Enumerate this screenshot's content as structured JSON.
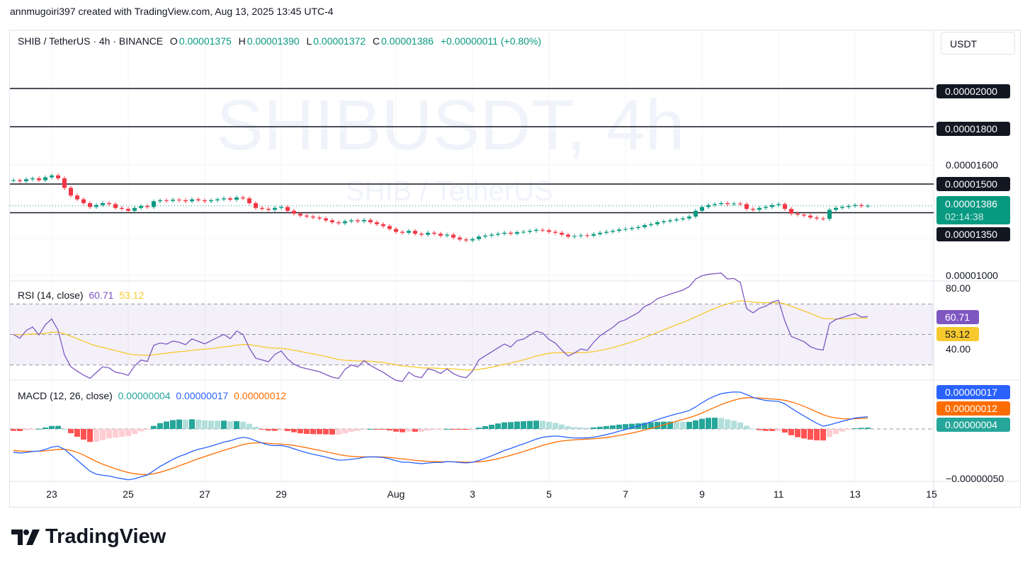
{
  "credit": "annmugoiri397 created with TradingView.com, Aug 13, 2025 13:45 UTC-4",
  "watermark": {
    "main": "SHIBUSDT, 4h",
    "sub": "SHIB / TetherUS"
  },
  "legend": {
    "symbol": "SHIB / TetherUS · 4h · BINANCE",
    "o_label": "O",
    "o": "0.00001375",
    "h_label": "H",
    "h": "0.00001390",
    "l_label": "L",
    "l": "0.00001372",
    "c_label": "C",
    "c": "0.00001386",
    "change": "+0.00000011 (+0.80%)"
  },
  "currency_button": "USDT",
  "price_axis": {
    "plain_labels": [
      "0.00001600",
      "0.00001000"
    ],
    "levels": [
      "0.00002000",
      "0.00001800",
      "0.00001500",
      "0.00001350"
    ],
    "last_price": "0.00001386",
    "countdown": "02:14:38"
  },
  "rsi": {
    "label": "RSI (14, close)",
    "value": "60.71",
    "ma_value": "53.12",
    "axis": [
      "80.00",
      "40.00"
    ],
    "color": "#7e57c2",
    "ma_color": "#f7c92e"
  },
  "macd": {
    "label": "MACD (12, 26, close)",
    "hist_value": "0.00000004",
    "macd_value": "0.00000017",
    "signal_value": "0.00000012",
    "axis_bottom": "−0.00000050",
    "macd_color": "#2962ff",
    "signal_color": "#ff6d00",
    "hist_color": "#26a69a"
  },
  "time_axis": [
    "23",
    "25",
    "27",
    "29",
    "Aug",
    "3",
    "5",
    "7",
    "9",
    "11",
    "13",
    "15"
  ],
  "brand": "TradingView",
  "chart_data": {
    "type": "candlestick",
    "interval": "4h",
    "start": "2025-07-22",
    "up_color": "#089981",
    "down_color": "#f23645",
    "horizontal_levels": [
      2e-05,
      1.8e-05,
      1.5e-05,
      1.35e-05
    ],
    "ylim": [
      9.5e-06,
      2.15e-05
    ],
    "closes": [
      1.52e-05,
      1.515e-05,
      1.525e-05,
      1.53e-05,
      1.52e-05,
      1.535e-05,
      1.545e-05,
      1.53e-05,
      1.48e-05,
      1.44e-05,
      1.42e-05,
      1.4e-05,
      1.38e-05,
      1.39e-05,
      1.4e-05,
      1.395e-05,
      1.375e-05,
      1.37e-05,
      1.36e-05,
      1.375e-05,
      1.385e-05,
      1.38e-05,
      1.41e-05,
      1.415e-05,
      1.412e-05,
      1.418e-05,
      1.415e-05,
      1.41e-05,
      1.42e-05,
      1.415e-05,
      1.41e-05,
      1.415e-05,
      1.42e-05,
      1.425e-05,
      1.418e-05,
      1.43e-05,
      1.425e-05,
      1.4e-05,
      1.375e-05,
      1.37e-05,
      1.365e-05,
      1.375e-05,
      1.38e-05,
      1.36e-05,
      1.345e-05,
      1.335e-05,
      1.33e-05,
      1.325e-05,
      1.32e-05,
      1.31e-05,
      1.3e-05,
      1.295e-05,
      1.305e-05,
      1.31e-05,
      1.305e-05,
      1.312e-05,
      1.3e-05,
      1.29e-05,
      1.28e-05,
      1.265e-05,
      1.25e-05,
      1.245e-05,
      1.255e-05,
      1.24e-05,
      1.235e-05,
      1.245e-05,
      1.24e-05,
      1.23e-05,
      1.235e-05,
      1.22e-05,
      1.21e-05,
      1.205e-05,
      1.212e-05,
      1.225e-05,
      1.23e-05,
      1.235e-05,
      1.24e-05,
      1.245e-05,
      1.24e-05,
      1.248e-05,
      1.25e-05,
      1.255e-05,
      1.26e-05,
      1.258e-05,
      1.25e-05,
      1.245e-05,
      1.235e-05,
      1.225e-05,
      1.228e-05,
      1.232e-05,
      1.23e-05,
      1.238e-05,
      1.245e-05,
      1.25e-05,
      1.255e-05,
      1.262e-05,
      1.265e-05,
      1.27e-05,
      1.275e-05,
      1.285e-05,
      1.29e-05,
      1.3e-05,
      1.305e-05,
      1.31e-05,
      1.315e-05,
      1.32e-05,
      1.33e-05,
      1.36e-05,
      1.38e-05,
      1.39e-05,
      1.395e-05,
      1.4e-05,
      1.395e-05,
      1.398e-05,
      1.395e-05,
      1.37e-05,
      1.365e-05,
      1.375e-05,
      1.38e-05,
      1.39e-05,
      1.395e-05,
      1.37e-05,
      1.345e-05,
      1.34e-05,
      1.335e-05,
      1.325e-05,
      1.32e-05,
      1.318e-05,
      1.365e-05,
      1.375e-05,
      1.38e-05,
      1.385e-05,
      1.39e-05,
      1.385e-05,
      1.386e-05
    ]
  }
}
